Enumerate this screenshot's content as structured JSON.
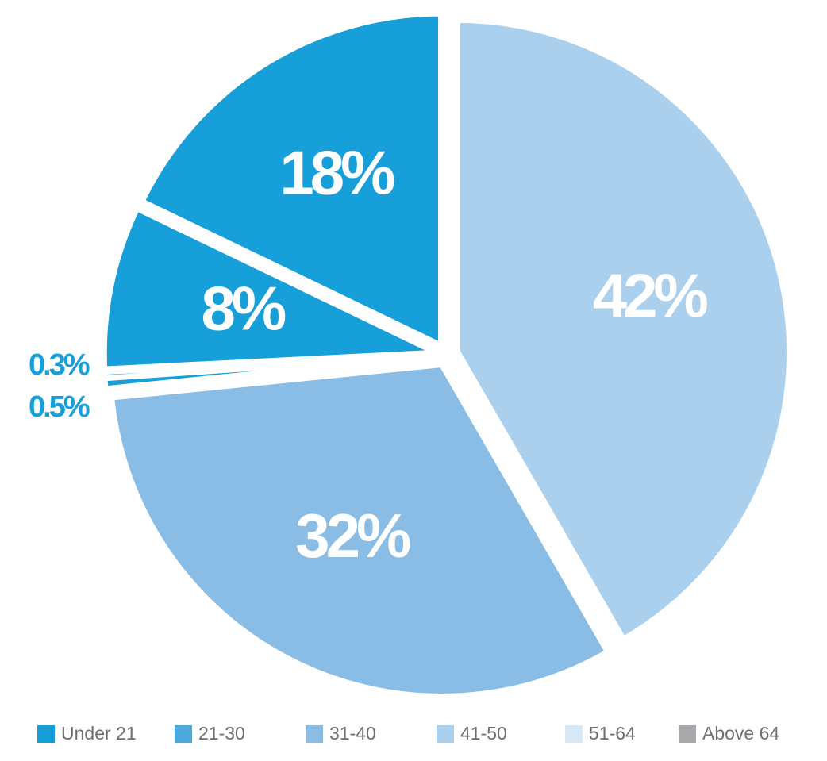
{
  "chart_data": {
    "type": "pie",
    "categories": [
      "Under 21",
      "21-30",
      "31-40",
      "41-50",
      "51-64",
      "Above 64"
    ],
    "values": [
      18,
      8,
      32,
      42,
      0.5,
      0.3
    ],
    "value_labels": [
      "18%",
      "8%",
      "32%",
      "42%",
      "0.5%",
      "0.3%"
    ],
    "colors": [
      "#169fd9",
      "#169fd9",
      "#89bde6",
      "#abd0ed",
      "#169fd9",
      "#169fd9"
    ],
    "legend_colors": [
      "#169fd9",
      "#4ba9de",
      "#89bde6",
      "#abd0ed",
      "#d7e8f7",
      "#a7a9ac"
    ]
  }
}
